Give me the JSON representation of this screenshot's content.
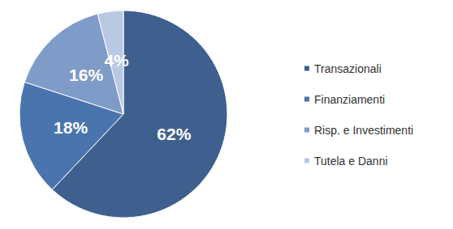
{
  "chart_data": {
    "type": "pie",
    "categories": [
      "Transazionali",
      "Finanziamenti",
      "Risp. e Investimenti",
      "Tutela e Danni"
    ],
    "values": [
      62,
      18,
      16,
      4
    ],
    "value_labels": [
      "62%",
      "18%",
      "16%",
      "4%"
    ],
    "colors": [
      "#3f5f8e",
      "#4a74ad",
      "#7f9bc8",
      "#b9c9e3"
    ],
    "data_labels": true,
    "legend": "right"
  }
}
